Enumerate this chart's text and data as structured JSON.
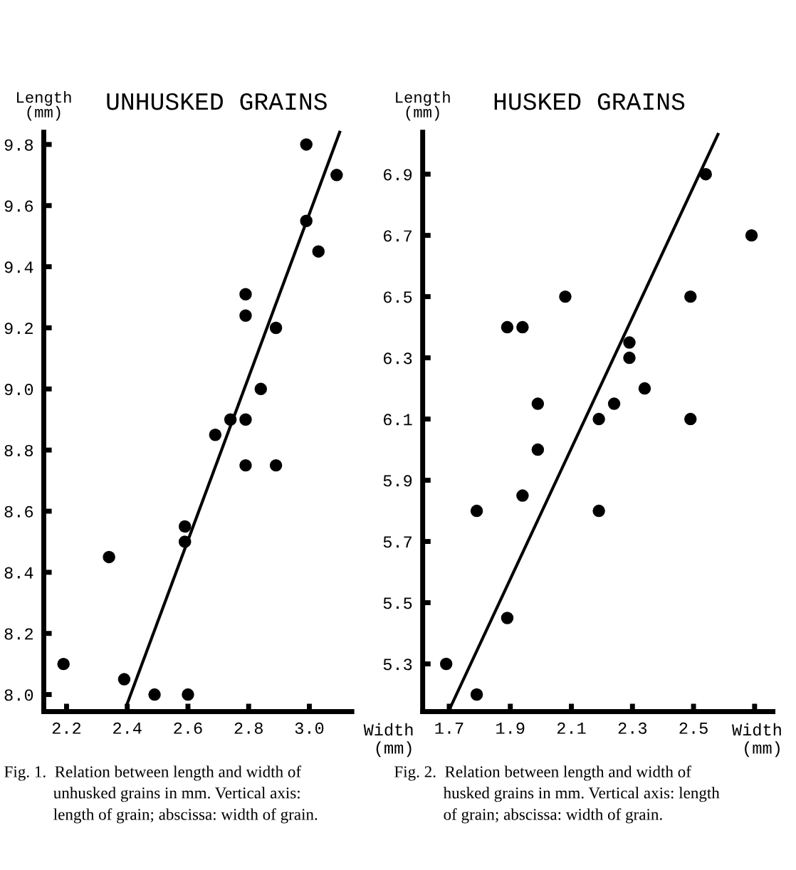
{
  "chart_data": [
    {
      "type": "scatter",
      "title": "UNHUSKED GRAINS",
      "xlabel": "Width\n(mm)",
      "ylabel": "Length\n(mm)",
      "grid": false,
      "legend": false,
      "xlim": [
        2.125,
        3.14
      ],
      "ylim": [
        7.944,
        9.84
      ],
      "xticks": [
        2.2,
        2.4,
        2.6,
        2.8,
        {
          "value": 3.0,
          "label": "3.0"
        }
      ],
      "yticks": [
        {
          "value": 8.0,
          "label": "8.0"
        },
        8.2,
        8.4,
        8.6,
        8.8,
        {
          "value": 9.0,
          "label": "9.0"
        },
        9.2,
        9.4,
        9.6,
        9.8
      ],
      "series": [
        {
          "color": "#000000",
          "marker": "circle",
          "x": [
            2.99,
            3.09,
            2.99,
            3.03,
            2.79,
            2.79,
            2.89,
            2.84,
            2.74,
            2.79,
            2.69,
            2.79,
            2.89,
            2.59,
            2.59,
            2.34,
            2.19,
            2.39,
            2.49,
            2.6
          ],
          "values": [
            9.8,
            9.7,
            9.55,
            9.45,
            9.31,
            9.24,
            9.2,
            9.0,
            8.9,
            8.9,
            8.85,
            8.75,
            8.75,
            8.55,
            8.5,
            8.45,
            8.1,
            8.05,
            8.0,
            8.0
          ]
        },
        {
          "type": "line",
          "color": "#000000",
          "x": [
            2.4,
            3.1
          ],
          "values": [
            7.97,
            9.84
          ]
        }
      ],
      "annotations": [
        "Fig. 1.  Relation between length and width of\n            unhusked grains in mm. Vertical axis:\n            length of grain; abscissa: width of grain."
      ]
    },
    {
      "type": "scatter",
      "title": "HUSKED GRAINS",
      "xlabel": "Width\n(mm)",
      "ylabel": "Length\n(mm)",
      "grid": false,
      "legend": false,
      "xlim": [
        1.613,
        2.76
      ],
      "ylim": [
        5.144,
        7.037
      ],
      "xticks": [
        1.7,
        1.9,
        2.1,
        2.3,
        2.5,
        {
          "value": 2.7,
          "label": null
        }
      ],
      "yticks": [
        5.3,
        5.5,
        5.7,
        5.9,
        6.1,
        6.3,
        6.5,
        6.7,
        6.9
      ],
      "series": [
        {
          "color": "#000000",
          "marker": "circle",
          "x": [
            2.54,
            2.69,
            2.08,
            2.49,
            1.89,
            1.94,
            2.29,
            2.29,
            2.34,
            1.99,
            2.24,
            2.19,
            2.49,
            1.99,
            1.94,
            1.79,
            2.19,
            1.89,
            1.69,
            1.79
          ],
          "values": [
            6.9,
            6.7,
            6.5,
            6.5,
            6.4,
            6.4,
            6.35,
            6.3,
            6.2,
            6.15,
            6.15,
            6.1,
            6.1,
            6.0,
            5.85,
            5.8,
            5.8,
            5.45,
            5.3,
            5.2
          ]
        },
        {
          "type": "line",
          "color": "#000000",
          "x": [
            1.7,
            2.58
          ],
          "values": [
            5.15,
            7.03
          ]
        }
      ],
      "annotations": [
        "Fig. 2.  Relation between length and width of\n            husked grains in mm. Vertical axis: length\n            of grain; abscissa: width of grain."
      ]
    }
  ]
}
